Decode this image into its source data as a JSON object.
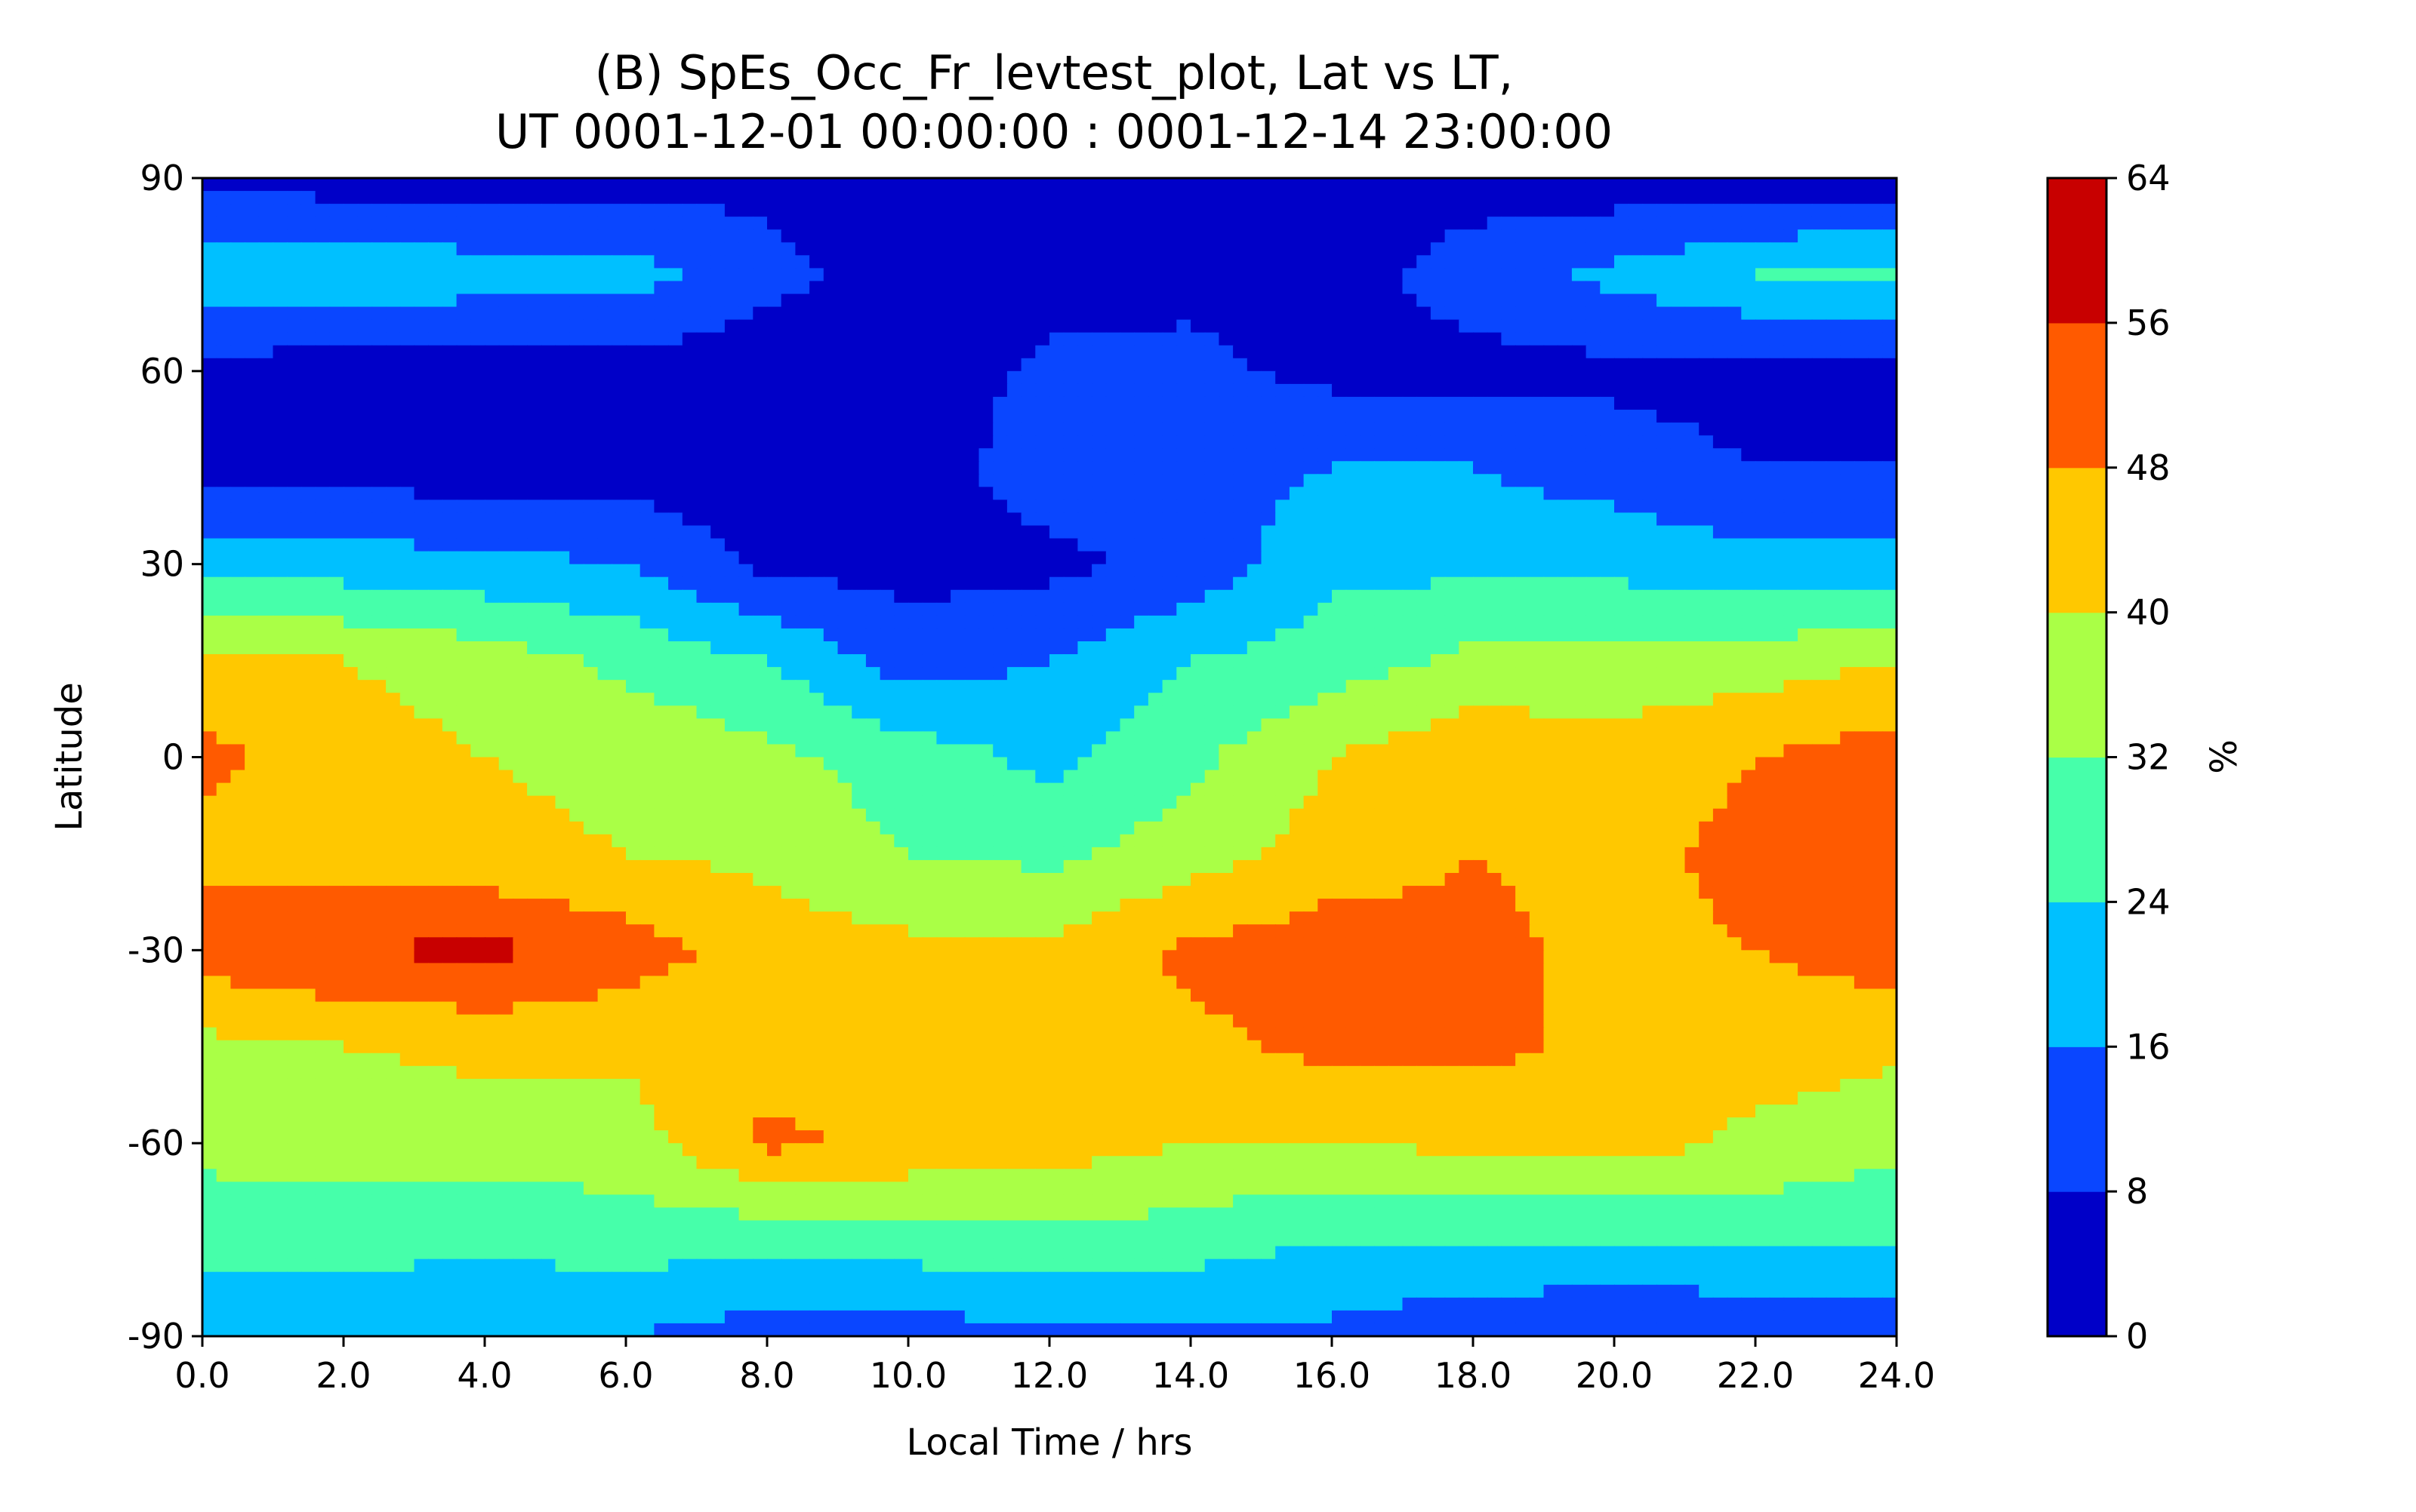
{
  "chart_data": {
    "type": "heatmap",
    "subtype": "filled-contour",
    "title": "(B) SpEs_Occ_Fr_levtest_plot, Lat vs LT,",
    "subtitle": "UT 0001-12-01 00:00:00 : 0001-12-14 23:00:00",
    "xlabel": "Local Time / hrs",
    "ylabel": "Latitude",
    "xlim": [
      0,
      24
    ],
    "ylim": [
      -90,
      90
    ],
    "x_ticks": [
      "0.0",
      "2.0",
      "4.0",
      "6.0",
      "8.0",
      "10.0",
      "12.0",
      "14.0",
      "16.0",
      "18.0",
      "20.0",
      "22.0",
      "24.0"
    ],
    "y_ticks": [
      "90",
      "60",
      "30",
      "0",
      "-30",
      "-60",
      "-90"
    ],
    "colorbar": {
      "label": "%",
      "levels": [
        0,
        8,
        16,
        24,
        32,
        40,
        48,
        56,
        64
      ],
      "tick_labels": [
        "0",
        "8",
        "16",
        "24",
        "32",
        "40",
        "48",
        "56",
        "64"
      ],
      "colors": [
        "#0000c8",
        "#0a46ff",
        "#00c0ff",
        "#46ffaa",
        "#aaff46",
        "#ffc800",
        "#ff5a00",
        "#c80000"
      ]
    },
    "x_grid": [
      0,
      2,
      4,
      6,
      8,
      10,
      12,
      14,
      16,
      18,
      20,
      22,
      24
    ],
    "y_grid": [
      90,
      75,
      60,
      45,
      30,
      15,
      0,
      -15,
      -30,
      -45,
      -60,
      -75,
      -90
    ],
    "z": [
      [
        6,
        4,
        4,
        4,
        6,
        3,
        6,
        8,
        5,
        4,
        3,
        3,
        3
      ],
      [
        22,
        22,
        20,
        20,
        10,
        5,
        4,
        6,
        4,
        12,
        18,
        24,
        26
      ],
      [
        5,
        4,
        4,
        4,
        4,
        3,
        10,
        10,
        6,
        5,
        6,
        5,
        5
      ],
      [
        4,
        4,
        4,
        4,
        4,
        4,
        12,
        14,
        16,
        16,
        12,
        8,
        8
      ],
      [
        20,
        20,
        18,
        16,
        6,
        5,
        6,
        10,
        22,
        22,
        22,
        18,
        18
      ],
      [
        42,
        40,
        36,
        30,
        24,
        12,
        16,
        24,
        28,
        34,
        34,
        36,
        40
      ],
      [
        50,
        44,
        40,
        38,
        34,
        28,
        22,
        30,
        40,
        46,
        44,
        48,
        52
      ],
      [
        46,
        44,
        42,
        40,
        38,
        32,
        30,
        36,
        44,
        48,
        46,
        50,
        54
      ],
      [
        52,
        56,
        58,
        52,
        44,
        42,
        42,
        50,
        52,
        50,
        46,
        48,
        52
      ],
      [
        38,
        40,
        42,
        42,
        44,
        40,
        40,
        46,
        50,
        50,
        46,
        44,
        42
      ],
      [
        34,
        34,
        36,
        36,
        50,
        46,
        44,
        40,
        40,
        42,
        44,
        38,
        34
      ],
      [
        28,
        28,
        26,
        28,
        26,
        28,
        30,
        28,
        24,
        24,
        24,
        26,
        26
      ],
      [
        16,
        16,
        16,
        16,
        12,
        12,
        14,
        14,
        14,
        10,
        8,
        8,
        8
      ]
    ]
  }
}
